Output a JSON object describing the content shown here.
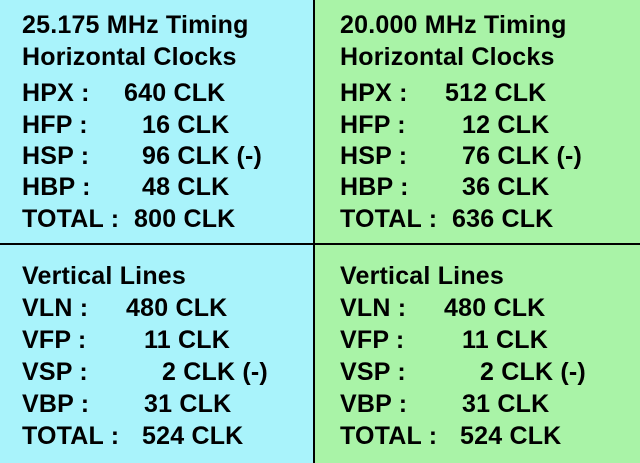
{
  "panels": {
    "top_left": {
      "title1": "25.175 MHz Timing",
      "title2": "Horizontal Clocks",
      "rows": [
        {
          "label": "HPX :",
          "value": "640 CLK"
        },
        {
          "label": "HFP :",
          "value": "16 CLK"
        },
        {
          "label": "HSP :",
          "value": "96 CLK (-)"
        },
        {
          "label": "HBP :",
          "value": "48 CLK"
        },
        {
          "label": "TOTAL :",
          "value": "800 CLK"
        }
      ]
    },
    "top_right": {
      "title1": "20.000 MHz Timing",
      "title2": "Horizontal Clocks",
      "rows": [
        {
          "label": "HPX :",
          "value": "512 CLK"
        },
        {
          "label": "HFP :",
          "value": "12 CLK"
        },
        {
          "label": "HSP :",
          "value": "76 CLK (-)"
        },
        {
          "label": "HBP :",
          "value": "36 CLK"
        },
        {
          "label": "TOTAL :",
          "value": "636 CLK"
        }
      ]
    },
    "bottom_left": {
      "title": "Vertical Lines",
      "rows": [
        {
          "label": "VLN :",
          "value": "480 CLK"
        },
        {
          "label": "VFP :",
          "value": "11 CLK"
        },
        {
          "label": "VSP :",
          "value": "2 CLK (-)"
        },
        {
          "label": "VBP :",
          "value": "31 CLK"
        },
        {
          "label": "TOTAL :",
          "value": "524 CLK"
        }
      ]
    },
    "bottom_right": {
      "title": "Vertical Lines",
      "rows": [
        {
          "label": "VLN :",
          "value": "480 CLK"
        },
        {
          "label": "VFP :",
          "value": "11 CLK"
        },
        {
          "label": "VSP :",
          "value": "2 CLK (-)"
        },
        {
          "label": "VBP :",
          "value": "31 CLK"
        },
        {
          "label": "TOTAL :",
          "value": "524 CLK"
        }
      ]
    }
  },
  "colors": {
    "blue_panel": "#a9f3fb",
    "green_panel": "#a9f3a7",
    "divider": "#000000"
  }
}
